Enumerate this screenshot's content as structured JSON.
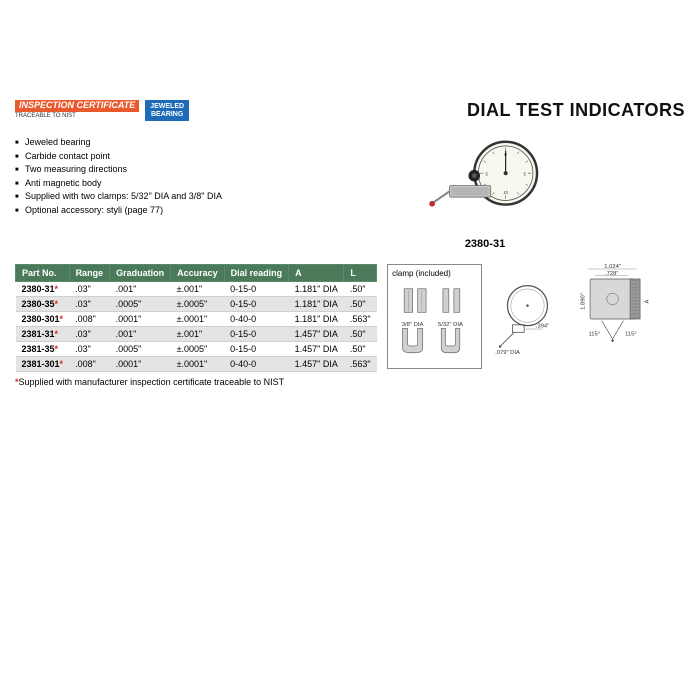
{
  "badges": {
    "inspection_line1": "INSPECTION",
    "inspection_line2": "CERTIFICATE",
    "inspection_sub": "TRACEABLE TO NIST",
    "jeweled_line1": "JEWELED",
    "jeweled_line2": "BEARING"
  },
  "title": "DIAL TEST INDICATORS",
  "features": [
    "Jeweled bearing",
    "Carbide contact point",
    "Two measuring directions",
    "Anti magnetic body",
    "Supplied with two clamps: 5/32\" DIA and 3/8\" DIA",
    "Optional accessory: styli (page 77)"
  ],
  "model_label": "2380-31",
  "table": {
    "columns": [
      "Part No.",
      "Range",
      "Graduation",
      "Accuracy",
      "Dial reading",
      "A",
      "L"
    ],
    "rows": [
      {
        "part": "2380-31",
        "star": true,
        "cells": [
          ".03\"",
          ".001\"",
          "±.001\"",
          "0-15-0",
          "1.181\" DIA",
          ".50\""
        ]
      },
      {
        "part": "2380-35",
        "star": true,
        "cells": [
          ".03\"",
          ".0005\"",
          "±.0005\"",
          "0-15-0",
          "1.181\" DIA",
          ".50\""
        ]
      },
      {
        "part": "2380-301",
        "star": true,
        "cells": [
          ".008\"",
          ".0001\"",
          "±.0001\"",
          "0-40-0",
          "1.181\" DIA",
          ".563\""
        ]
      },
      {
        "part": "2381-31",
        "star": true,
        "cells": [
          ".03\"",
          ".001\"",
          "±.001\"",
          "0-15-0",
          "1.457\" DIA",
          ".50\""
        ]
      },
      {
        "part": "2381-35",
        "star": true,
        "cells": [
          ".03\"",
          ".0005\"",
          "±.0005\"",
          "0-15-0",
          "1.457\" DIA",
          ".50\""
        ]
      },
      {
        "part": "2381-301",
        "star": true,
        "cells": [
          ".008\"",
          ".0001\"",
          "±.0001\"",
          "0-40-0",
          "1.457\" DIA",
          ".563\""
        ]
      }
    ]
  },
  "footnote_prefix": "*",
  "footnote": "Supplied with manufacturer inspection certificate traceable to NIST",
  "clamp_title": "clamp (included)",
  "clamp_label1": "3/8\" DIA",
  "clamp_label2": "5/32\" DIA",
  "dims": {
    "d1": "1.024\"",
    "d2": ".728\"",
    "d3": "1.890\"",
    "d4": ".394\"",
    "d5": ".079\" DIA",
    "d6": "115°",
    "d7": "115°",
    "d8": "A"
  },
  "colors": {
    "header_bg": "#4a7a5a",
    "badge_orange": "#e85a2e",
    "badge_blue": "#1e6bb8",
    "asterisk": "#d62828"
  }
}
